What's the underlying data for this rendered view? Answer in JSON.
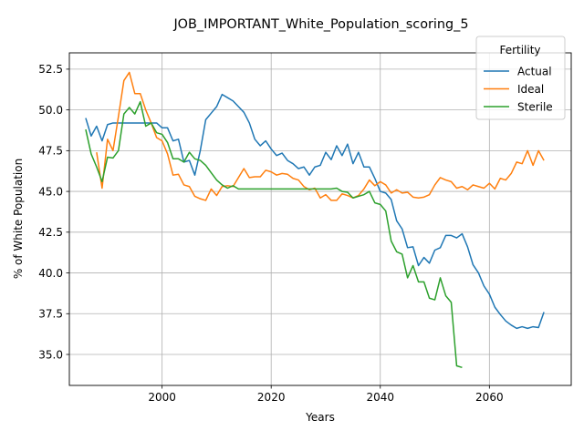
{
  "chart_data": {
    "type": "line",
    "title": "JOB_IMPORTANT_White_Population_scoring_5",
    "xlabel": "Years",
    "ylabel": "% of White Population",
    "xlim": [
      1983,
      2075
    ],
    "ylim": [
      33.1,
      53.5
    ],
    "xticks": [
      2000,
      2020,
      2040,
      2060
    ],
    "yticks": [
      35.0,
      37.5,
      40.0,
      42.5,
      45.0,
      47.5,
      50.0,
      52.5
    ],
    "xtick_labels": [
      "2000",
      "2020",
      "2040",
      "2060"
    ],
    "ytick_labels": [
      "35.0",
      "37.5",
      "40.0",
      "42.5",
      "45.0",
      "47.5",
      "50.0",
      "52.5"
    ],
    "grid": true,
    "legend": {
      "title": "Fertility",
      "position": "top-right"
    },
    "series": [
      {
        "name": "Actual",
        "color": "#1f77b4",
        "x": [
          1986,
          1987,
          1988,
          1989,
          1990,
          1991,
          1992,
          1993,
          1994,
          1995,
          1996,
          1997,
          1998,
          1999,
          2000,
          2001,
          2002,
          2003,
          2004,
          2005,
          2006,
          2007,
          2008,
          2009,
          2010,
          2011,
          2012,
          2013,
          2014,
          2015,
          2016,
          2017,
          2018,
          2019,
          2020,
          2021,
          2022,
          2023,
          2024,
          2025,
          2026,
          2027,
          2028,
          2029,
          2030,
          2031,
          2032,
          2033,
          2034,
          2035,
          2036,
          2037,
          2038,
          2039,
          2040,
          2041,
          2042,
          2043,
          2044,
          2045,
          2046,
          2047,
          2048,
          2049,
          2050,
          2051,
          2052,
          2053,
          2054,
          2055,
          2056,
          2057,
          2058,
          2059,
          2060,
          2061,
          2062,
          2063,
          2064,
          2065,
          2066,
          2067,
          2068,
          2069,
          2070
        ],
        "y": [
          49.5,
          48.4,
          49.0,
          48.1,
          49.1,
          49.2,
          49.2,
          49.2,
          49.2,
          49.2,
          49.2,
          49.2,
          49.2,
          49.2,
          48.9,
          48.9,
          48.1,
          48.2,
          46.8,
          46.9,
          46.0,
          47.5,
          49.4,
          49.8,
          50.2,
          50.95,
          50.75,
          50.55,
          50.2,
          49.85,
          49.2,
          48.2,
          47.8,
          48.1,
          47.6,
          47.2,
          47.35,
          46.9,
          46.7,
          46.4,
          46.5,
          46.0,
          46.5,
          46.6,
          47.4,
          46.95,
          47.8,
          47.2,
          47.9,
          46.7,
          47.4,
          46.5,
          46.5,
          45.8,
          45.0,
          44.9,
          44.5,
          43.2,
          42.7,
          41.55,
          41.6,
          40.45,
          40.95,
          40.6,
          41.4,
          41.55,
          42.3,
          42.3,
          42.15,
          42.4,
          41.6,
          40.5,
          40.0,
          39.2,
          38.7,
          37.9,
          37.45,
          37.05,
          36.8,
          36.6,
          36.7,
          36.6,
          36.7,
          36.65,
          37.6
        ]
      },
      {
        "name": "Ideal",
        "color": "#ff7f0e",
        "x": [
          1988,
          1989,
          1990,
          1991,
          1992,
          1993,
          1994,
          1995,
          1996,
          1997,
          1998,
          1999,
          2000,
          2001,
          2002,
          2003,
          2004,
          2005,
          2006,
          2007,
          2008,
          2009,
          2010,
          2011,
          2012,
          2013,
          2014,
          2015,
          2016,
          2017,
          2018,
          2019,
          2020,
          2021,
          2022,
          2023,
          2024,
          2025,
          2026,
          2027,
          2028,
          2029,
          2030,
          2031,
          2032,
          2033,
          2034,
          2035,
          2036,
          2037,
          2038,
          2039,
          2040,
          2041,
          2042,
          2043,
          2044,
          2045,
          2046,
          2047,
          2048,
          2049,
          2050,
          2051,
          2052,
          2053,
          2054,
          2055,
          2056,
          2057,
          2058,
          2059,
          2060,
          2061,
          2062,
          2063,
          2064,
          2065,
          2066,
          2067,
          2068,
          2069,
          2070
        ],
        "y": [
          47.4,
          45.2,
          48.2,
          47.5,
          49.6,
          51.8,
          52.3,
          51.0,
          51.0,
          50.0,
          49.2,
          48.3,
          48.1,
          47.3,
          46.0,
          46.05,
          45.4,
          45.3,
          44.7,
          44.55,
          44.45,
          45.15,
          44.75,
          45.3,
          45.35,
          45.3,
          45.85,
          46.4,
          45.85,
          45.9,
          45.9,
          46.3,
          46.2,
          46.0,
          46.1,
          46.05,
          45.8,
          45.7,
          45.3,
          45.1,
          45.2,
          44.6,
          44.8,
          44.45,
          44.45,
          44.85,
          44.75,
          44.6,
          44.75,
          45.15,
          45.7,
          45.35,
          45.6,
          45.4,
          44.9,
          45.1,
          44.9,
          44.95,
          44.65,
          44.6,
          44.65,
          44.8,
          45.4,
          45.85,
          45.7,
          45.6,
          45.2,
          45.3,
          45.1,
          45.4,
          45.3,
          45.2,
          45.5,
          45.15,
          45.8,
          45.7,
          46.1,
          46.8,
          46.7,
          47.5,
          46.6,
          47.5,
          46.9
        ]
      },
      {
        "name": "Sterile",
        "color": "#2ca02c",
        "x": [
          1986,
          1987,
          1988,
          1989,
          1990,
          1991,
          1992,
          1993,
          1994,
          1995,
          1996,
          1997,
          1998,
          1999,
          2000,
          2001,
          2002,
          2003,
          2004,
          2005,
          2006,
          2007,
          2008,
          2009,
          2010,
          2011,
          2012,
          2013,
          2014,
          2015,
          2016,
          2017,
          2018,
          2019,
          2020,
          2021,
          2022,
          2023,
          2024,
          2025,
          2026,
          2027,
          2028,
          2029,
          2030,
          2031,
          2032,
          2033,
          2034,
          2035,
          2036,
          2037,
          2038,
          2039,
          2040,
          2041,
          2042,
          2043,
          2044,
          2045,
          2046,
          2047,
          2048,
          2049,
          2050,
          2051,
          2052,
          2053,
          2054,
          2055
        ],
        "y": [
          48.8,
          47.3,
          46.5,
          45.6,
          47.1,
          47.05,
          47.5,
          49.75,
          50.15,
          49.75,
          50.5,
          49.0,
          49.2,
          48.6,
          48.5,
          48.0,
          47.0,
          47.0,
          46.8,
          47.4,
          47.0,
          46.9,
          46.6,
          46.15,
          45.7,
          45.4,
          45.2,
          45.35,
          45.15,
          45.15,
          45.15,
          45.15,
          45.15,
          45.15,
          45.15,
          45.15,
          45.15,
          45.15,
          45.15,
          45.15,
          45.15,
          45.15,
          45.15,
          45.15,
          45.15,
          45.15,
          45.2,
          45.0,
          44.95,
          44.6,
          44.7,
          44.8,
          45.0,
          44.3,
          44.2,
          43.8,
          41.95,
          41.3,
          41.15,
          39.7,
          40.45,
          39.45,
          39.45,
          38.45,
          38.35,
          39.7,
          38.6,
          38.2,
          34.3,
          34.2
        ]
      }
    ]
  }
}
